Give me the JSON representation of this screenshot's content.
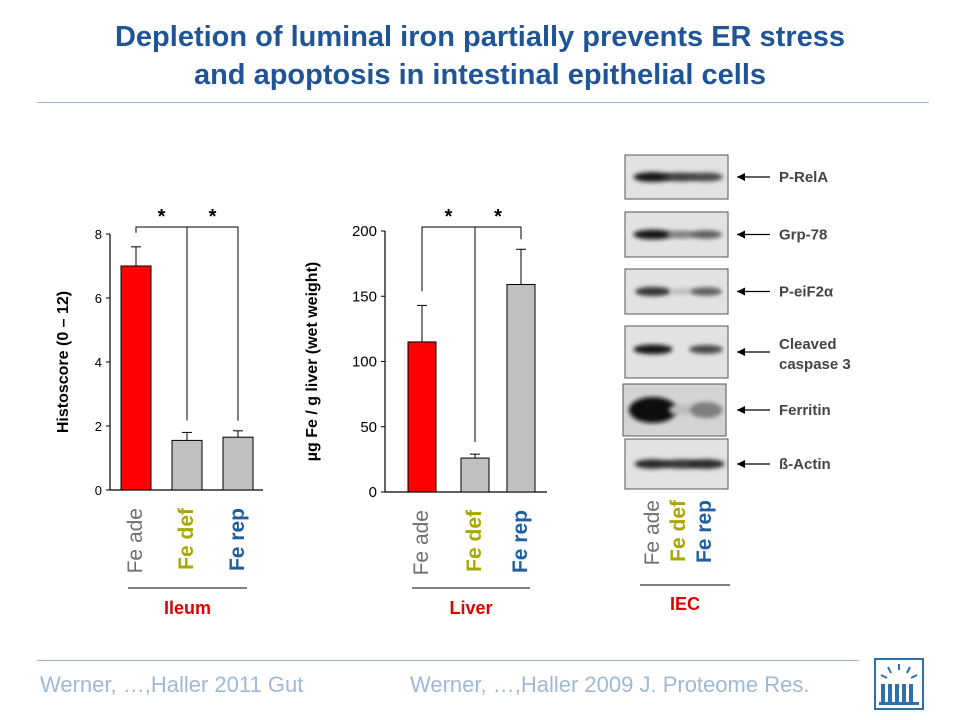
{
  "slide": {
    "title_lines": [
      "Depletion of luminal iron partially prevents ER stress",
      "and apoptosis in intestinal epithelial cells"
    ],
    "footer_left": "Werner, …,Haller 2011 Gut",
    "footer_right": "Werner, …,Haller 2009 J. Proteome Res.",
    "accent_color": "#1f5496",
    "logo_icon": "institute-logo-icon"
  },
  "chart_data": [
    {
      "type": "bar",
      "ylabel": "Histoscore (0 – 12)",
      "group_label": "Ileum",
      "categories": [
        "Fe ade",
        "Fe def",
        "Fe rep"
      ],
      "category_colors": [
        "#707070",
        "#a8a800",
        "#1f5fa0"
      ],
      "values": [
        7.0,
        1.55,
        1.65
      ],
      "errors": [
        0.6,
        0.25,
        0.2
      ],
      "bar_colors": [
        "#ff0000",
        "#c0c0c0",
        "#c0c0c0"
      ],
      "ylim": [
        0,
        8
      ],
      "yticks": [
        "0",
        "2",
        "4",
        "6",
        "8"
      ],
      "significance": [
        "*",
        "*"
      ]
    },
    {
      "type": "bar",
      "ylabel": "µg Fe / g liver (wet weight)",
      "group_label": "Liver",
      "categories": [
        "Fe ade",
        "Fe def",
        "Fe rep"
      ],
      "category_colors": [
        "#707070",
        "#a8a800",
        "#1f5fa0"
      ],
      "values": [
        115,
        26,
        159
      ],
      "errors": [
        28,
        3,
        27
      ],
      "bar_colors": [
        "#ff0000",
        "#c0c0c0",
        "#c0c0c0"
      ],
      "ylim": [
        0,
        200
      ],
      "yticks": [
        "0",
        "50",
        "100",
        "150",
        "200"
      ],
      "significance": [
        "*",
        "*"
      ]
    }
  ],
  "blot": {
    "group_label": "IEC",
    "lanes": [
      "Fe ade",
      "Fe def",
      "Fe rep"
    ],
    "lane_colors": [
      "#707070",
      "#a8a800",
      "#1f5fa0"
    ],
    "rows": [
      {
        "label": "P-RelA",
        "intensity": [
          0.95,
          0.75,
          0.7
        ]
      },
      {
        "label": "Grp-78",
        "intensity": [
          0.95,
          0.45,
          0.6
        ]
      },
      {
        "label": "P-eiF2α",
        "intensity": [
          0.8,
          0.15,
          0.6
        ]
      },
      {
        "label": "Cleaved caspase 3",
        "intensity": [
          0.95,
          0.0,
          0.7
        ]
      },
      {
        "label": "Ferritin",
        "intensity": [
          1.0,
          0.15,
          0.45
        ]
      },
      {
        "label": "ß-Actin",
        "intensity": [
          0.85,
          0.8,
          0.85
        ]
      }
    ]
  }
}
